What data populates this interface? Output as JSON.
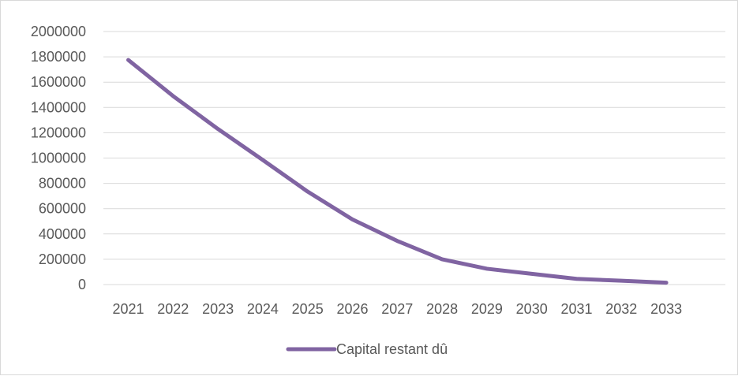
{
  "chart_data": {
    "type": "line",
    "title": "",
    "xlabel": "",
    "ylabel": "",
    "x": [
      "2021",
      "2022",
      "2023",
      "2024",
      "2025",
      "2026",
      "2027",
      "2028",
      "2029",
      "2030",
      "2031",
      "2032",
      "2033"
    ],
    "y_ticks": [
      "0",
      "200000",
      "400000",
      "600000",
      "800000",
      "1000000",
      "1200000",
      "1400000",
      "1600000",
      "1800000",
      "2000000"
    ],
    "ylim": [
      0,
      2000000
    ],
    "grid": true,
    "legend": "bottom",
    "series": [
      {
        "name": "Capital restant dû",
        "color": "#8064a2",
        "values": [
          1775000,
          1490000,
          1230000,
          985000,
          735000,
          515000,
          345000,
          200000,
          125000,
          85000,
          45000,
          30000,
          15000
        ]
      }
    ]
  }
}
